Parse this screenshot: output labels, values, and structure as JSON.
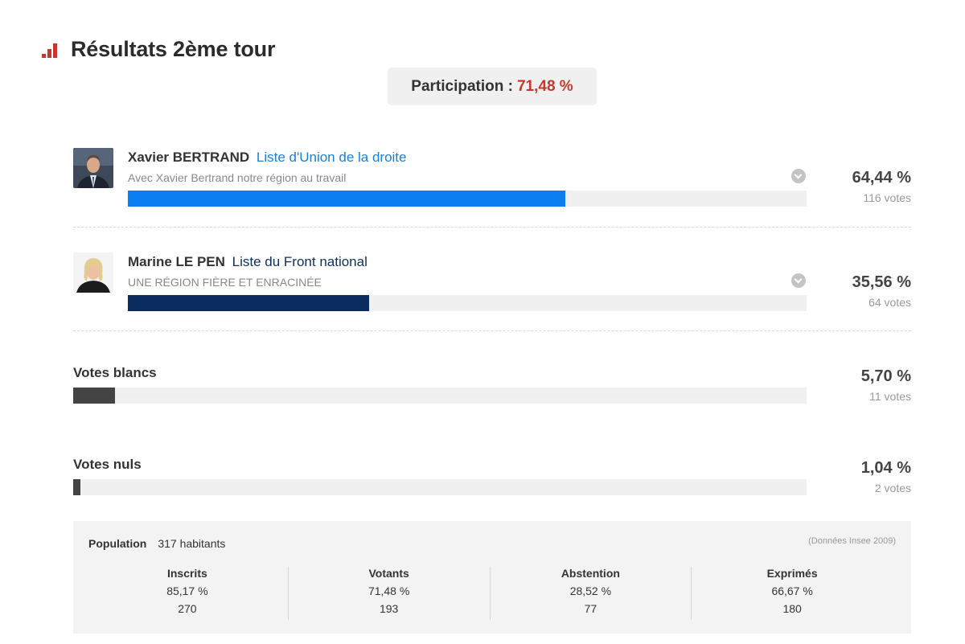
{
  "header": {
    "title": "Résultats 2ème tour",
    "icon": "bar-chart-icon",
    "icon_color": "#c8372d"
  },
  "participation": {
    "label": "Participation :",
    "value": "71,48 %",
    "value_color": "#c8372d"
  },
  "candidates": [
    {
      "name": "Xavier BERTRAND",
      "list": "Liste d'Union de la droite",
      "list_color": "#1a7fd6",
      "slogan": "Avec Xavier Bertrand notre région au travail",
      "percent": "64,44 %",
      "share": 64.44,
      "votes": "116 votes",
      "bar_color": "#0a7ef0"
    },
    {
      "name": "Marine LE PEN",
      "list": "Liste du Front national",
      "list_color": "#0e2f5c",
      "slogan": "UNE RÉGION FIÈRE ET ENRACINÉE",
      "percent": "35,56 %",
      "share": 35.56,
      "votes": "64 votes",
      "bar_color": "#0a2c5e"
    }
  ],
  "blancs": {
    "label": "Votes blancs",
    "percent": "5,70 %",
    "share": 5.7,
    "votes": "11 votes",
    "bar_color": "#444444"
  },
  "nuls": {
    "label": "Votes nuls",
    "percent": "1,04 %",
    "share": 1.04,
    "votes": "2 votes",
    "bar_color": "#444444"
  },
  "stats": {
    "population_label": "Population",
    "population_value": "317 habitants",
    "source": "(Données Insee 2009)",
    "columns": [
      {
        "header": "Inscrits",
        "percent": "85,17 %",
        "count": "270"
      },
      {
        "header": "Votants",
        "percent": "71,48 %",
        "count": "193"
      },
      {
        "header": "Abstention",
        "percent": "28,52 %",
        "count": "77"
      },
      {
        "header": "Exprimés",
        "percent": "66,67 %",
        "count": "180"
      }
    ]
  }
}
